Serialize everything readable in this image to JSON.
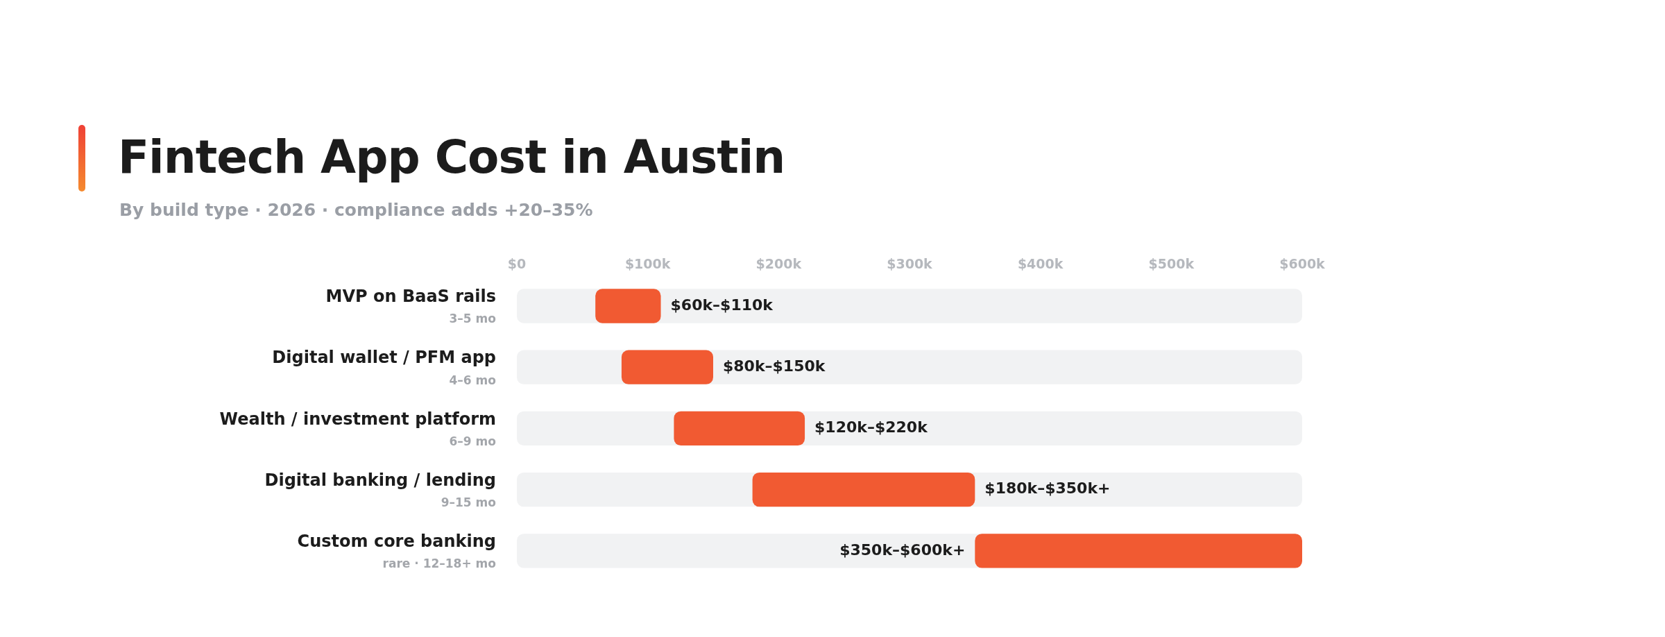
{
  "chart_data": {
    "type": "bar",
    "orientation": "horizontal",
    "title": "Fintech App Cost in Austin",
    "subtitle": "By build type · 2026 · compliance adds +20–35%",
    "categories": [
      "MVP on BaaS rails",
      "Digital wallet / PFM app",
      "Wealth / investment platform",
      "Digital banking / lending",
      "Custom core banking"
    ],
    "base": [
      60,
      80,
      120,
      180,
      350
    ],
    "values": [
      50,
      70,
      100,
      170,
      250
    ],
    "color": "#f15a32",
    "annotations": [
      "3–5 mo",
      "4–6 mo",
      "6–9 mo",
      "9–15 mo",
      "rare · 12–18+ mo",
      {
        "text": "$60k–$110k",
        "x": 110,
        "y": "MVP on BaaS rails"
      },
      {
        "text": "$80k–$150k",
        "x": 150,
        "y": "Digital wallet / PFM app"
      },
      {
        "text": "$120k–$220k",
        "x": 220,
        "y": "Wealth / investment platform"
      },
      {
        "text": "$180k–$350k+",
        "x": 350,
        "y": "Digital banking / lending"
      },
      {
        "text": "$350k–$600k+",
        "x": 350,
        "y": "Custom core banking"
      }
    ],
    "xlim": [
      0,
      600
    ],
    "xticks": [
      {
        "value": 0,
        "label": "$0"
      },
      {
        "value": 100,
        "label": "$100k"
      },
      {
        "value": 200,
        "label": "$200k"
      },
      {
        "value": 300,
        "label": "$300k"
      },
      {
        "value": 400,
        "label": "$400k"
      },
      {
        "value": 500,
        "label": "$500k"
      },
      {
        "value": 600,
        "label": "$600k"
      }
    ],
    "grid": false,
    "legend": false
  }
}
